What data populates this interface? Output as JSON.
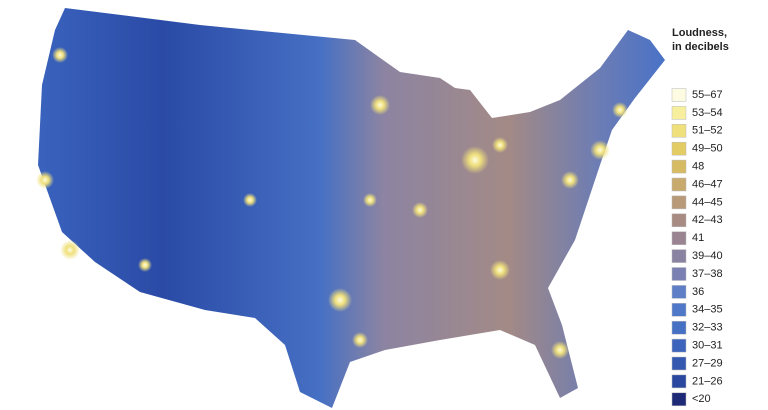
{
  "legend": {
    "title": [
      "Loudness,",
      "in decibels"
    ],
    "items": [
      {
        "label": "55–67",
        "color": "#fdfbe2"
      },
      {
        "label": "53–54",
        "color": "#f7ef9e"
      },
      {
        "label": "51–52",
        "color": "#efe07c"
      },
      {
        "label": "49–50",
        "color": "#e2cc63"
      },
      {
        "label": "48",
        "color": "#d6bb63"
      },
      {
        "label": "46–47",
        "color": "#c8aa6e"
      },
      {
        "label": "44–45",
        "color": "#b89a79"
      },
      {
        "label": "42–43",
        "color": "#a88b82"
      },
      {
        "label": "41",
        "color": "#9a8491"
      },
      {
        "label": "39–40",
        "color": "#8a82a1"
      },
      {
        "label": "37–38",
        "color": "#7a80b1"
      },
      {
        "label": "36",
        "color": "#5f7ec8"
      },
      {
        "label": "34–35",
        "color": "#5078c8"
      },
      {
        "label": "32–33",
        "color": "#4670c4"
      },
      {
        "label": "30–31",
        "color": "#3d64bc"
      },
      {
        "label": "27–29",
        "color": "#3458b0"
      },
      {
        "label": "21–26",
        "color": "#2a48a0"
      },
      {
        "label": "<20",
        "color": "#1e2a78"
      }
    ]
  }
}
